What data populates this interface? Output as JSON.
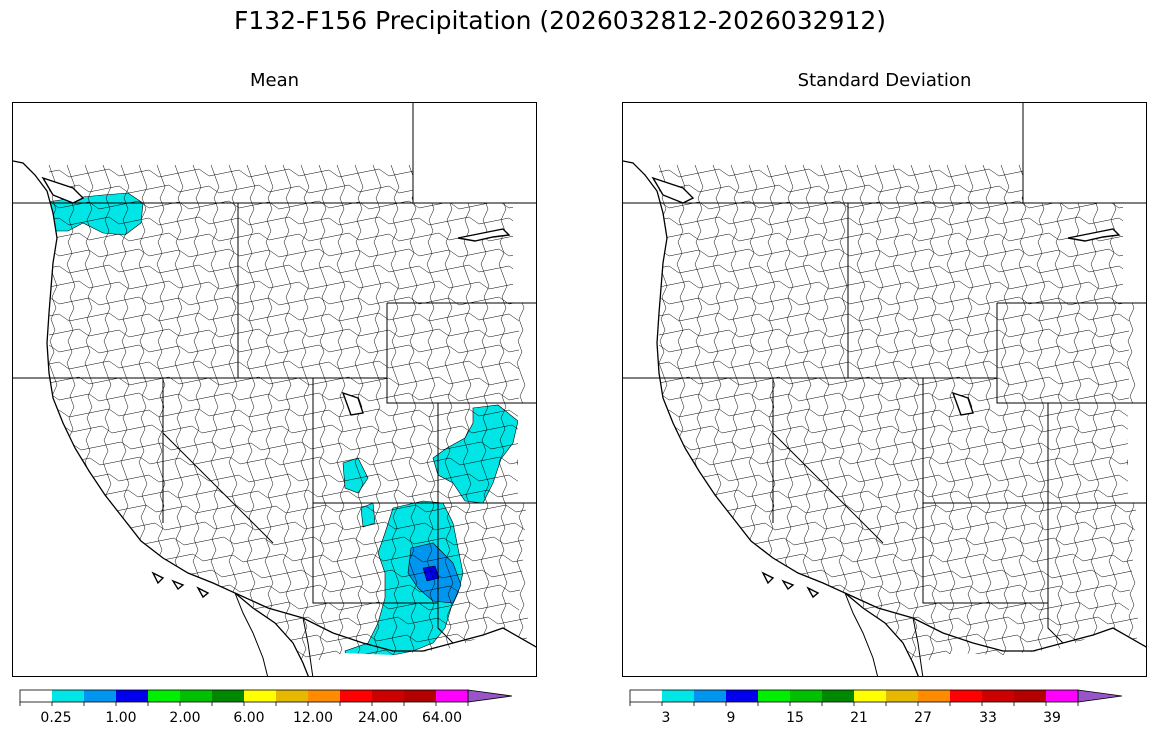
{
  "title": "F132-F156 Precipitation (2026032812-2026032912)",
  "colors": {
    "scale": [
      "#ffffff",
      "#00e5e5",
      "#0096f0",
      "#0000ee",
      "#00ee00",
      "#00c000",
      "#008800",
      "#ffff00",
      "#e6b800",
      "#ff8c00",
      "#ff0000",
      "#cc0000",
      "#b40000",
      "#ff00ff",
      "#9955c8"
    ],
    "basin_outline": "#000000"
  },
  "panels": [
    {
      "id": "mean",
      "title": "Mean",
      "colorbar": {
        "tick_labels": [
          "0.25",
          "1.00",
          "2.00",
          "6.00",
          "12.00",
          "24.00",
          "64.00"
        ]
      },
      "shaded_regions": [
        {
          "region": "northwest-washington",
          "color_index": 1
        },
        {
          "region": "utah-southeast",
          "color_index": 1
        },
        {
          "region": "colorado-east",
          "color_index": 1
        },
        {
          "region": "arizona-east",
          "color_index": 1
        },
        {
          "region": "new-mexico-west",
          "color_index": 2
        },
        {
          "region": "arizona-core",
          "color_index": 3
        }
      ]
    },
    {
      "id": "std",
      "title": "Standard Deviation",
      "colorbar": {
        "tick_labels": [
          "3",
          "9",
          "15",
          "21",
          "27",
          "33",
          "39"
        ]
      },
      "shaded_regions": []
    }
  ]
}
